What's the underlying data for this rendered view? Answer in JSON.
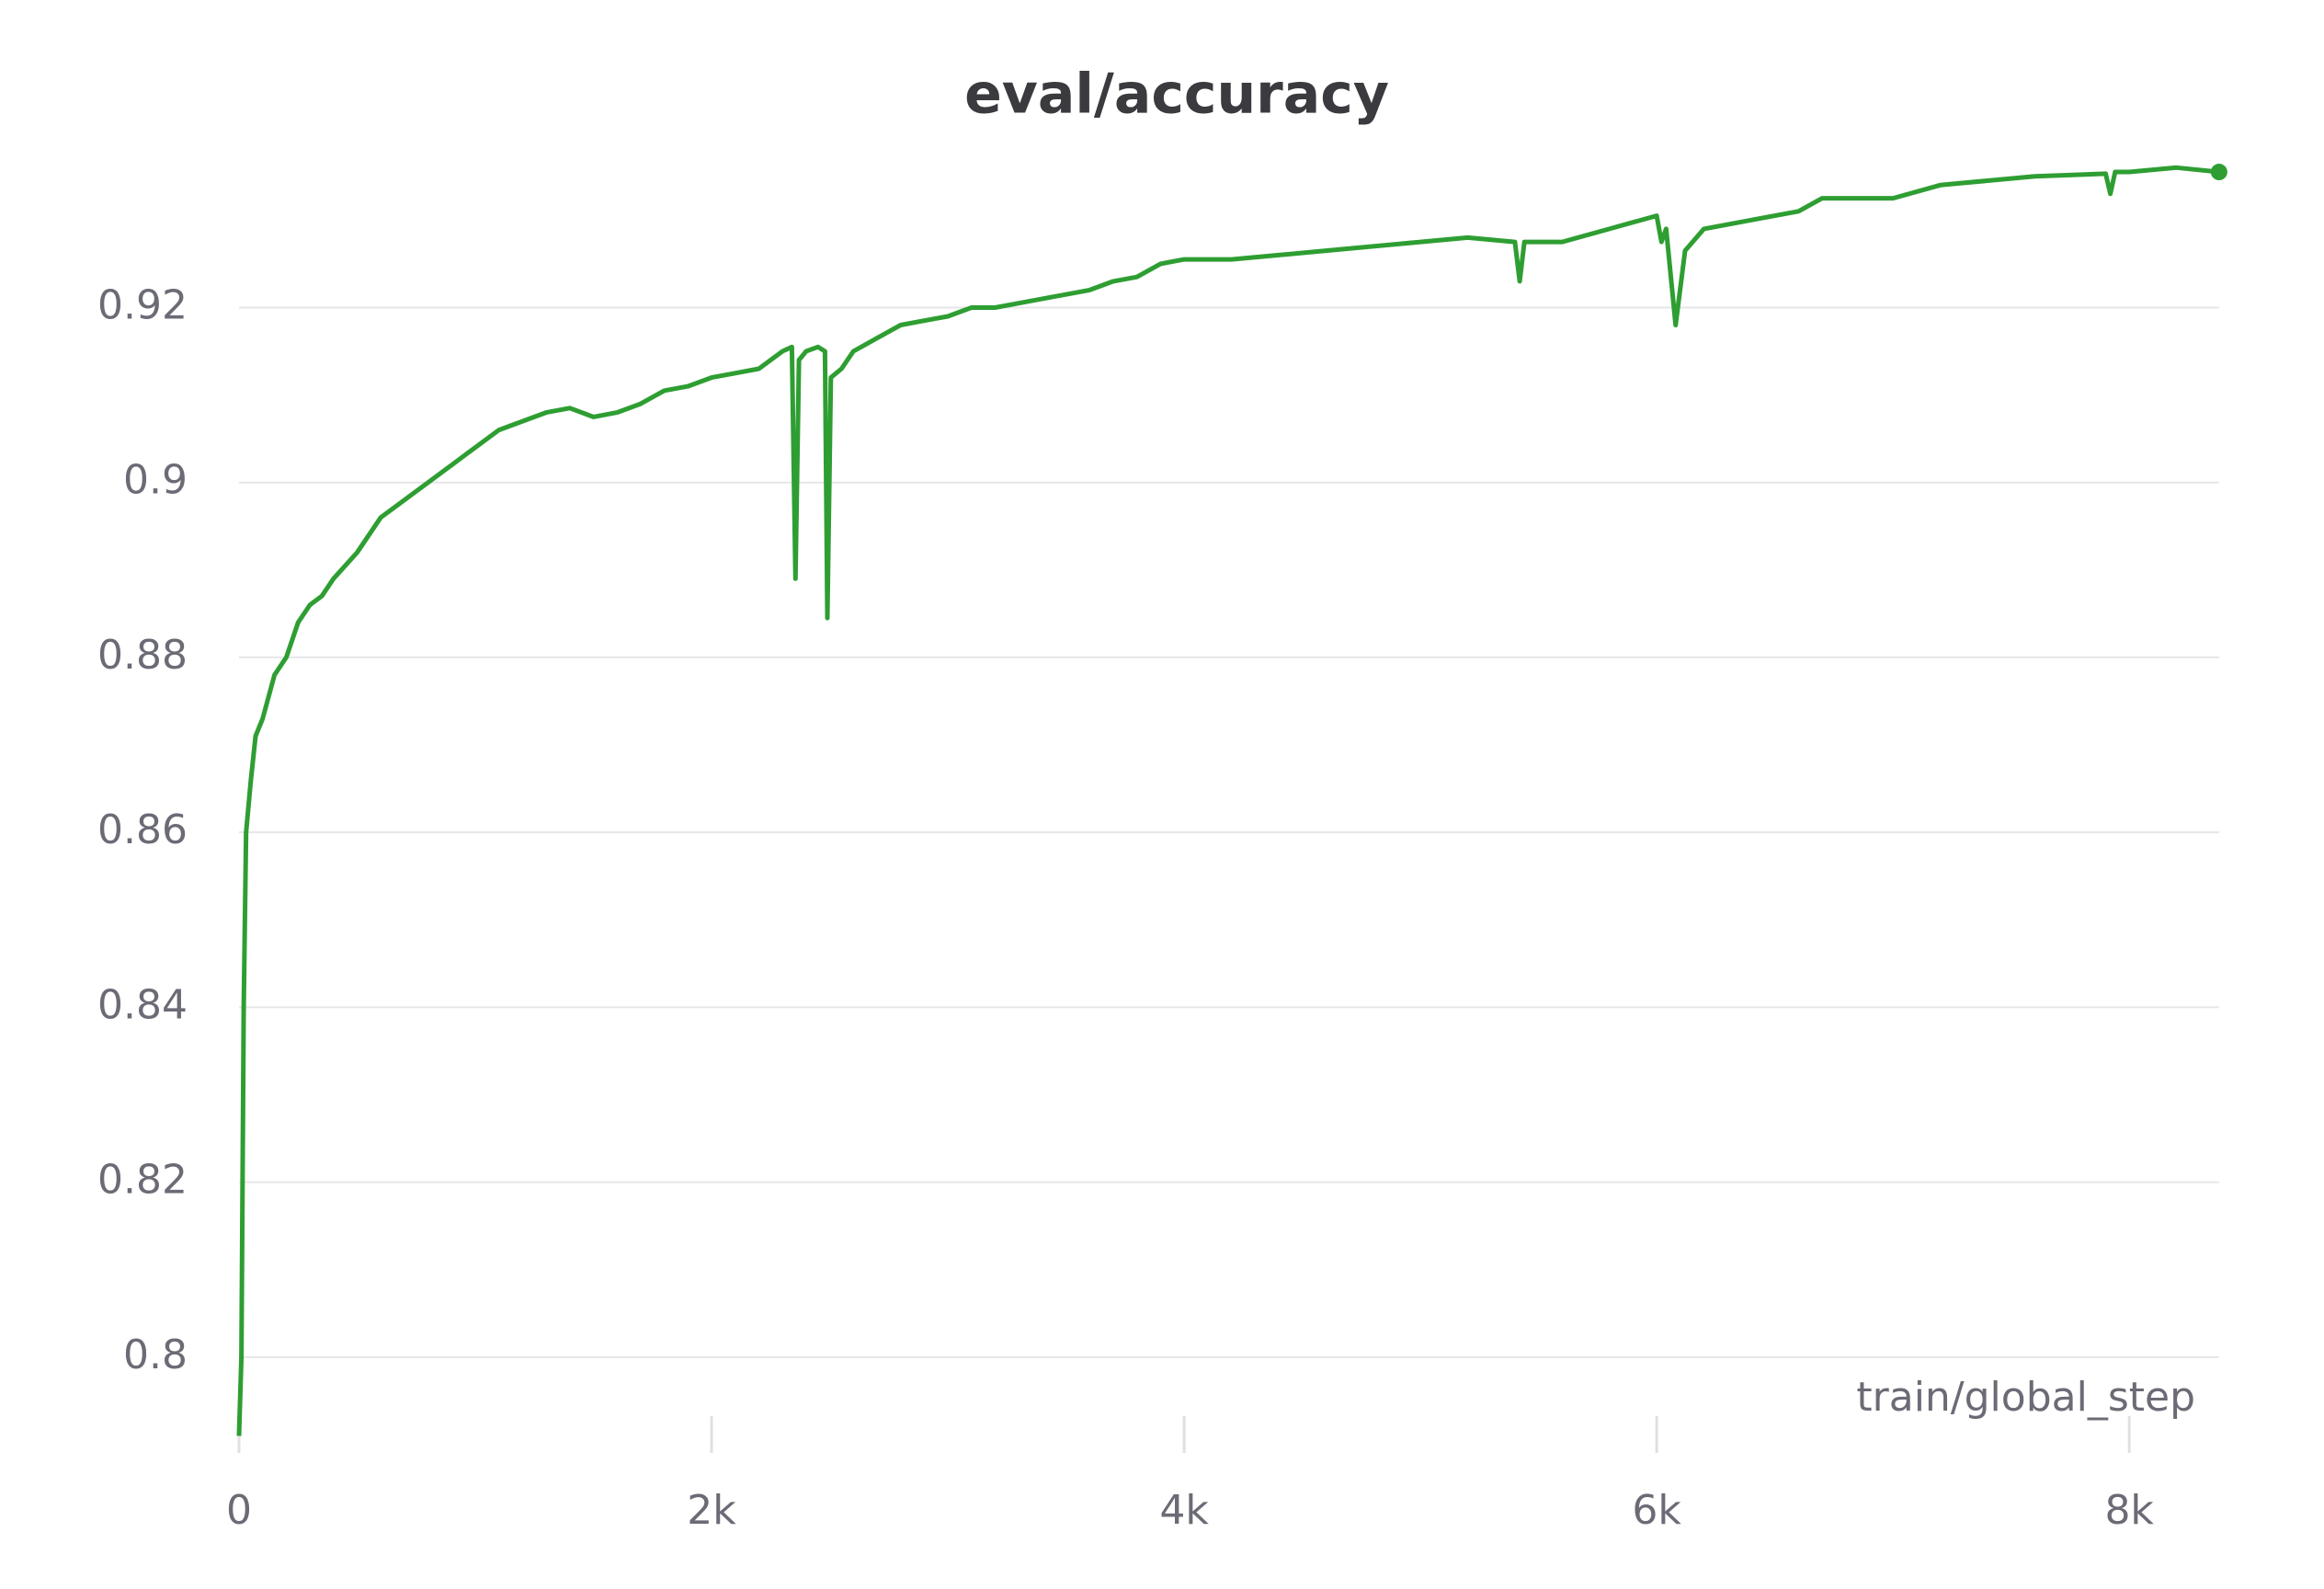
{
  "chart_data": {
    "type": "line",
    "title": "eval/accuracy",
    "x_label": "train/global_step",
    "color": "#2e9e32",
    "grid": true,
    "xlim": [
      0,
      8400
    ],
    "ylim": [
      0.79,
      0.9375
    ],
    "xticks": [
      0,
      {
        "value": 2000,
        "label": "2k"
      },
      {
        "value": 4000,
        "label": "4k"
      },
      {
        "value": 6000,
        "label": "6k"
      },
      {
        "value": 8000,
        "label": "8k"
      }
    ],
    "yticks": [
      0.8,
      0.82,
      0.84,
      0.86,
      0.88,
      0.9,
      0.92
    ],
    "x": [
      0,
      10,
      20,
      30,
      50,
      70,
      100,
      150,
      200,
      250,
      300,
      350,
      400,
      500,
      600,
      700,
      800,
      900,
      1000,
      1100,
      1200,
      1300,
      1400,
      1500,
      1600,
      1700,
      1800,
      1900,
      2000,
      2100,
      2200,
      2300,
      2340,
      2355,
      2370,
      2400,
      2450,
      2480,
      2490,
      2505,
      2550,
      2600,
      2700,
      2800,
      2900,
      3000,
      3100,
      3200,
      3300,
      3400,
      3500,
      3600,
      3700,
      3800,
      3900,
      4000,
      4200,
      4400,
      4600,
      4800,
      5000,
      5200,
      5400,
      5420,
      5440,
      5600,
      5800,
      6000,
      6020,
      6040,
      6080,
      6120,
      6200,
      6400,
      6600,
      6700,
      7000,
      7200,
      7400,
      7600,
      7800,
      7900,
      7920,
      7940,
      8000,
      8200,
      8380
    ],
    "values": [
      0.791,
      0.8,
      0.84,
      0.86,
      0.866,
      0.871,
      0.873,
      0.878,
      0.88,
      0.884,
      0.886,
      0.887,
      0.889,
      0.892,
      0.896,
      0.898,
      0.9,
      0.902,
      0.904,
      0.906,
      0.907,
      0.908,
      0.9085,
      0.9075,
      0.908,
      0.909,
      0.9105,
      0.911,
      0.912,
      0.9125,
      0.913,
      0.915,
      0.9155,
      0.889,
      0.914,
      0.915,
      0.9155,
      0.915,
      0.8845,
      0.912,
      0.913,
      0.915,
      0.9165,
      0.918,
      0.9185,
      0.919,
      0.92,
      0.92,
      0.9205,
      0.921,
      0.9215,
      0.922,
      0.923,
      0.9235,
      0.925,
      0.9255,
      0.9255,
      0.926,
      0.9265,
      0.927,
      0.9275,
      0.928,
      0.9275,
      0.923,
      0.9275,
      0.9275,
      0.929,
      0.9305,
      0.9275,
      0.929,
      0.918,
      0.9265,
      0.929,
      0.93,
      0.931,
      0.9325,
      0.9325,
      0.934,
      0.9345,
      0.935,
      0.9352,
      0.9353,
      0.933,
      0.9355,
      0.9355,
      0.936,
      0.9355
    ]
  }
}
